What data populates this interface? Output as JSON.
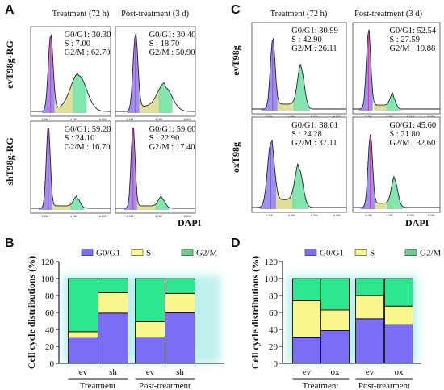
{
  "panels": {
    "A": {
      "letter": "A",
      "col_headers": [
        "Treatment (72 h)",
        "Post-treatment (3 d)"
      ],
      "row_labels": [
        "evT98g-RG",
        "shT98g-RG"
      ],
      "x_axis_label": "DAPI",
      "x_ticks": [
        "2.0M",
        "4.0M",
        "6.0M"
      ],
      "stats": [
        {
          "g0g1": "G0/G1: 30.30",
          "s": "S   : 7.00",
          "g2m": "G2/M : 62.70"
        },
        {
          "g0g1": "G0/G1: 30.40",
          "s": "S   : 18.70",
          "g2m": "G2/M : 50.90"
        },
        {
          "g0g1": "G0/G1: 59.20",
          "s": "S   : 24.10",
          "g2m": "G2/M : 16.70"
        },
        {
          "g0g1": "G0/G1: 59.60",
          "s": "S   : 22.90",
          "g2m": "G2/M : 17.40"
        }
      ]
    },
    "C": {
      "letter": "C",
      "col_headers": [
        "Treatment (72 h)",
        "Post-treatment (3 d)"
      ],
      "row_labels": [
        "evT98g",
        "oxT98g"
      ],
      "x_axis_label": "DAPI",
      "x_ticks": [
        "2.0M",
        "4.0M",
        "6.0M",
        "8.0M"
      ],
      "stats": [
        {
          "g0g1": "G0/G1: 30.99",
          "s": "S   : 42.90",
          "g2m": "G2/M : 26.11"
        },
        {
          "g0g1": "G0/G1: 52.54",
          "s": "S   : 27.59",
          "g2m": "G2/M : 19.88"
        },
        {
          "g0g1": "G0/G1: 38.61",
          "s": "S   : 24.28",
          "g2m": "G2/M : 37.11"
        },
        {
          "g0g1": "G0/G1: 45.60",
          "s": "S   : 21.80",
          "g2m": "G2/M : 32.60"
        }
      ]
    },
    "B": {
      "letter": "B"
    },
    "D": {
      "letter": "D"
    }
  },
  "colors": {
    "g0g1": "#7b6ef5",
    "s": "#f7f78e",
    "g2m": "#2ee68f",
    "g2m_legend": "#6fcf8f",
    "glow": "#b8f0ec",
    "hist_g1": "#8e7cf0",
    "hist_s": "#d9d98a",
    "hist_g2": "#6fe0a0",
    "peak_line": "#c8409a"
  },
  "chart_data": [
    {
      "type": "bar",
      "stacked": true,
      "panel": "B",
      "categories": [
        "ev",
        "sh",
        "ev",
        "sh"
      ],
      "groups": [
        "Treatment",
        "Post-treatment"
      ],
      "series": [
        {
          "name": "G0/G1",
          "values": [
            30.3,
            59.2,
            30.4,
            59.6
          ]
        },
        {
          "name": "S",
          "values": [
            7.0,
            24.1,
            18.7,
            22.9
          ]
        },
        {
          "name": "G2/M",
          "values": [
            62.7,
            16.7,
            50.9,
            17.4
          ]
        }
      ],
      "ylabel": "Cell cycle distributions (%)",
      "ylim": [
        0,
        120
      ],
      "yticks": [
        0,
        20,
        40,
        60,
        80,
        100,
        120
      ],
      "legend": "top"
    },
    {
      "type": "bar",
      "stacked": true,
      "panel": "D",
      "categories": [
        "ev",
        "ox",
        "ev",
        "ox"
      ],
      "groups": [
        "Treatment",
        "Post-treatment"
      ],
      "series": [
        {
          "name": "G0/G1",
          "values": [
            30.99,
            38.61,
            52.54,
            45.6
          ]
        },
        {
          "name": "S",
          "values": [
            42.9,
            24.28,
            27.59,
            21.8
          ]
        },
        {
          "name": "G2/M",
          "values": [
            26.11,
            37.11,
            19.88,
            32.6
          ]
        }
      ],
      "ylabel": "Cell cycle distributions (%)",
      "ylim": [
        0,
        120
      ],
      "yticks": [
        0,
        20,
        40,
        60,
        80,
        100,
        120
      ],
      "legend": "top"
    }
  ]
}
